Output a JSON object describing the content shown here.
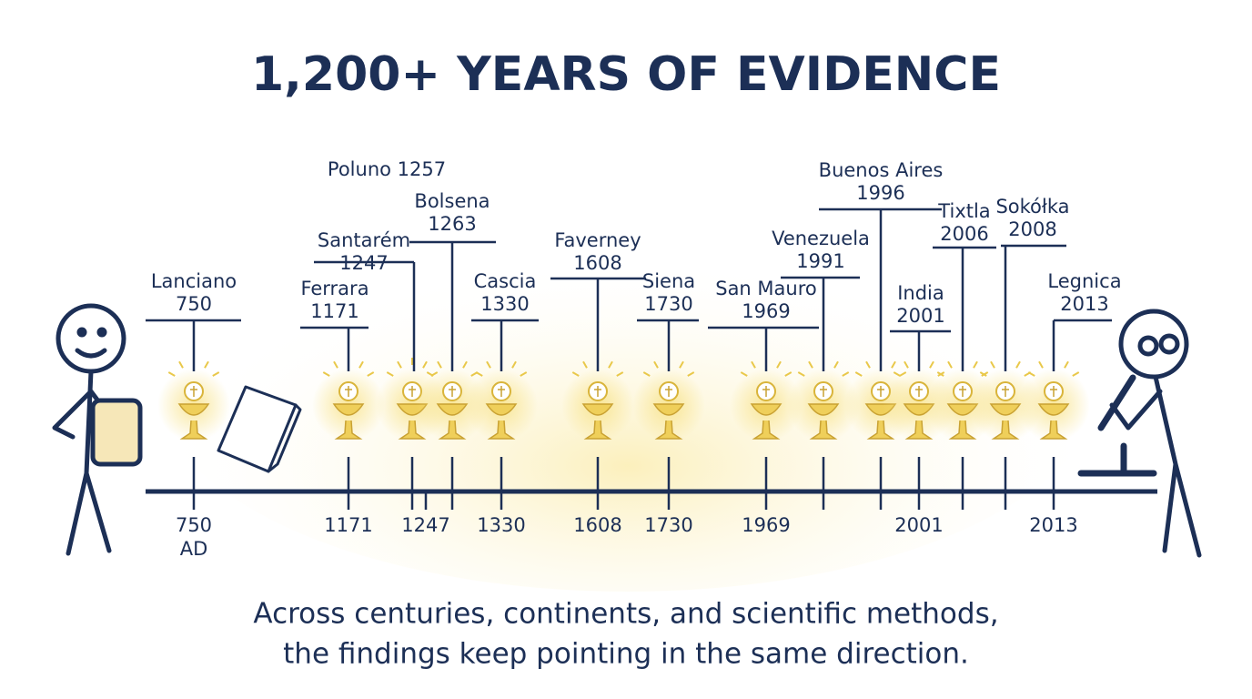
{
  "title": "1,200+ YEARS OF EVIDENCE",
  "events": [
    {
      "name": "Lanciano",
      "year": "750"
    },
    {
      "name": "Ferrara",
      "year": "1171"
    },
    {
      "name": "Santarém",
      "year": "1247"
    },
    {
      "name": "Poluno 1257"
    },
    {
      "name": "Bolsena",
      "year": "1263"
    },
    {
      "name": "Cascia",
      "year": "1330"
    },
    {
      "name": "Faverney",
      "year": "1608"
    },
    {
      "name": "Siena",
      "year": "1730"
    },
    {
      "name": "San Mauro",
      "year": "1969"
    },
    {
      "name": "Venezuela",
      "year": "1991"
    },
    {
      "name": "Buenos Aires",
      "year": "1996"
    },
    {
      "name": "India",
      "year": "2001"
    },
    {
      "name": "Tixtla",
      "year": "2006"
    },
    {
      "name": "Sokółka",
      "year": "2008"
    },
    {
      "name": "Legnica",
      "year": "2013"
    }
  ],
  "axis_labels": [
    "750",
    "AD",
    "1171",
    "1247",
    "1330",
    "1608",
    "1730",
    "1969",
    "2001",
    "2013"
  ],
  "footer": [
    "Across centuries, continents, and scientific methods,",
    "the findings keep pointing in the same direction."
  ]
}
